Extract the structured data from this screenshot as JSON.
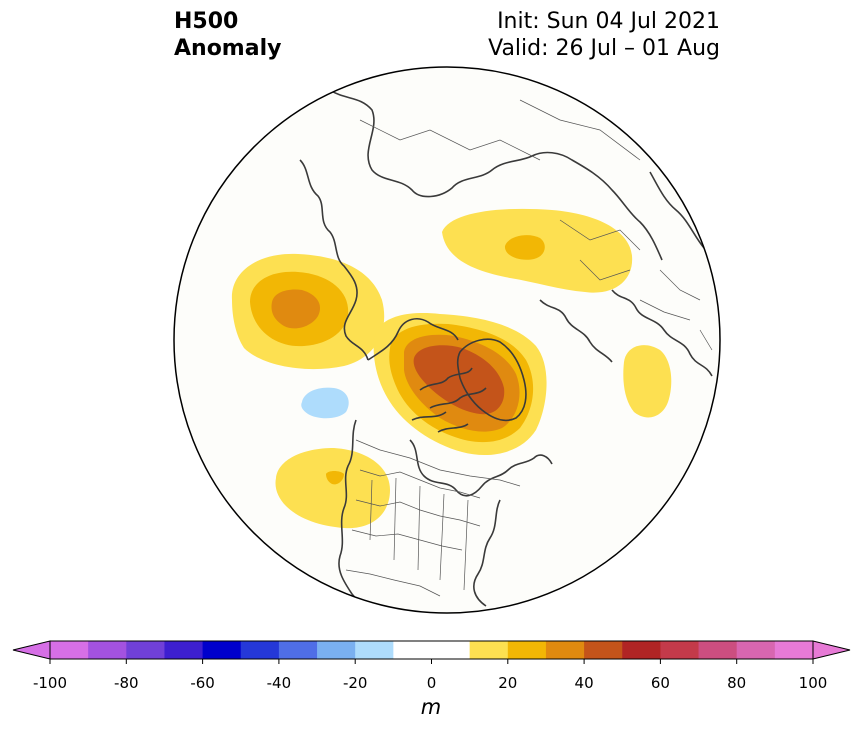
{
  "title": {
    "variable": "H500",
    "field": "Anomaly",
    "init": "Init: Sun 04 Jul 2021",
    "valid": "Valid: 26 Jul – 01 Aug"
  },
  "colorbar": {
    "unit": "m",
    "ticks": [
      "-100",
      "-80",
      "-60",
      "-40",
      "-20",
      "0",
      "20",
      "40",
      "60",
      "80",
      "100"
    ],
    "colors": [
      "#d66fe6",
      "#a352e0",
      "#7040d8",
      "#3d1fd0",
      "#0000cc",
      "#2538d8",
      "#4f6ee6",
      "#7ab0f0",
      "#aedcfc",
      "#ffffff",
      "#ffffff",
      "#fde051",
      "#f2b705",
      "#e08a10",
      "#c4541a",
      "#b02424",
      "#c43a4a",
      "#cc4e80",
      "#d866b0",
      "#e77ad6"
    ],
    "extend_low_color": "#d66fe6",
    "extend_high_color": "#e77ad6"
  },
  "map": {
    "projection": "north-polar-stereographic",
    "region": "Northern Hemisphere (North America / Arctic)",
    "anomaly_features": [
      {
        "name": "alaska-ridge",
        "sign": "positive",
        "max_class": "30-40"
      },
      {
        "name": "greenland-ridge",
        "sign": "positive",
        "max_class": "50-60"
      },
      {
        "name": "siberia-ridge",
        "sign": "positive",
        "max_class": "20-30"
      },
      {
        "name": "europe-ridge",
        "sign": "positive",
        "max_class": "10-20"
      },
      {
        "name": "northeast-pacific-trough",
        "sign": "negative",
        "max_class": "-20 to -10"
      },
      {
        "name": "western-us-ridge",
        "sign": "positive",
        "max_class": "20-30"
      }
    ],
    "colors": {
      "c10": "#fde051",
      "c20": "#f2b705",
      "c30": "#e08a10",
      "c40": "#c4541a",
      "neg10": "#aedcfc",
      "coast": "#3a3a3a",
      "border": "#555555",
      "background": "#fdfdfa"
    }
  }
}
